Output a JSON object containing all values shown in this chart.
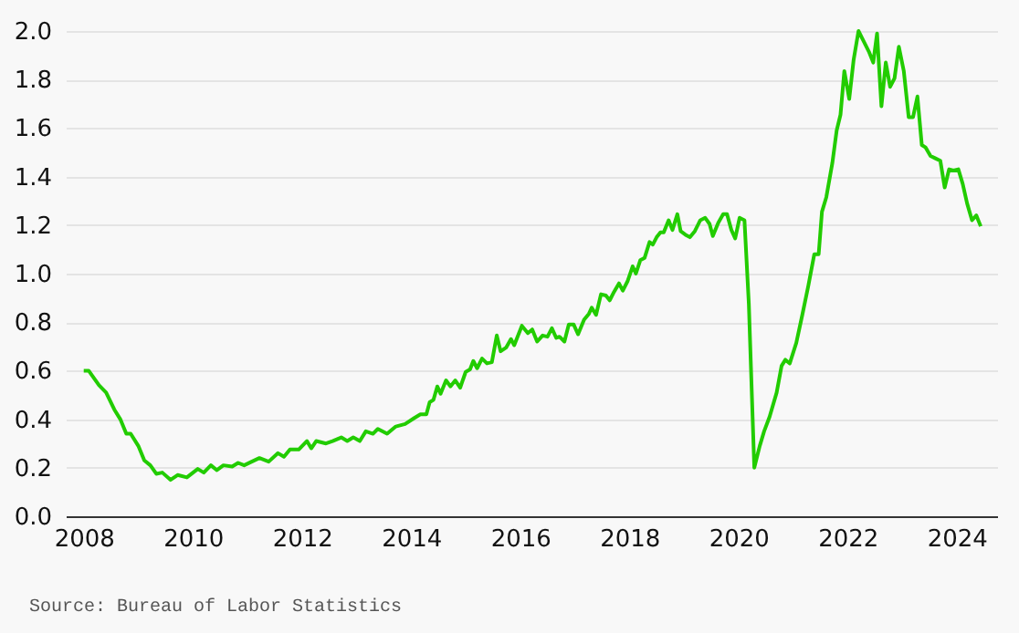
{
  "chart_data": {
    "type": "line",
    "annotations": [
      "Source: Bureau of Labor Statistics"
    ],
    "xlim": [
      2007.67,
      2024.74
    ],
    "xticks": [
      2008,
      2010,
      2012,
      2014,
      2016,
      2018,
      2020,
      2022,
      2024
    ],
    "ylim": [
      0,
      2.0
    ],
    "yticks": [
      {
        "value": 0,
        "label": "0.0"
      },
      0.2,
      0.4,
      0.6,
      0.8,
      {
        "value": 1,
        "label": "1.0"
      },
      1.2,
      1.4,
      1.6,
      1.8,
      {
        "value": 2,
        "label": "2.0"
      }
    ],
    "grid": "y",
    "marker": "none",
    "line_style": "solid",
    "series": [
      {
        "color": "#22cc00",
        "x": [
          2008.0,
          2008.09,
          2008.28,
          2008.41,
          2008.56,
          2008.67,
          2008.78,
          2008.86,
          2009.0,
          2009.11,
          2009.22,
          2009.33,
          2009.44,
          2009.59,
          2009.72,
          2009.89,
          2010.09,
          2010.2,
          2010.33,
          2010.44,
          2010.56,
          2010.72,
          2010.83,
          2010.94,
          2011.22,
          2011.39,
          2011.56,
          2011.67,
          2011.78,
          2011.94,
          2012.09,
          2012.17,
          2012.26,
          2012.44,
          2012.56,
          2012.72,
          2012.83,
          2012.94,
          2013.06,
          2013.17,
          2013.3,
          2013.39,
          2013.56,
          2013.72,
          2013.89,
          2014.06,
          2014.17,
          2014.28,
          2014.34,
          2014.41,
          2014.48,
          2014.54,
          2014.64,
          2014.72,
          2014.81,
          2014.9,
          2015.0,
          2015.08,
          2015.14,
          2015.21,
          2015.3,
          2015.39,
          2015.48,
          2015.57,
          2015.64,
          2015.74,
          2015.83,
          2015.89,
          2016.03,
          2016.14,
          2016.22,
          2016.31,
          2016.41,
          2016.5,
          2016.58,
          2016.66,
          2016.72,
          2016.81,
          2016.89,
          2016.98,
          2017.06,
          2017.17,
          2017.26,
          2017.31,
          2017.39,
          2017.48,
          2017.57,
          2017.64,
          2017.72,
          2017.81,
          2017.88,
          2017.97,
          2018.06,
          2018.12,
          2018.2,
          2018.28,
          2018.37,
          2018.43,
          2018.5,
          2018.57,
          2018.63,
          2018.72,
          2018.79,
          2018.88,
          2018.94,
          2019.03,
          2019.11,
          2019.2,
          2019.3,
          2019.39,
          2019.47,
          2019.53,
          2019.63,
          2019.72,
          2019.79,
          2019.87,
          2019.94,
          2020.02,
          2020.11,
          2020.19,
          2020.29,
          2020.39,
          2020.47,
          2020.57,
          2020.7,
          2020.79,
          2020.86,
          2020.94,
          2021.06,
          2021.17,
          2021.28,
          2021.39,
          2021.47,
          2021.53,
          2021.61,
          2021.72,
          2021.8,
          2021.87,
          2021.94,
          2022.03,
          2022.11,
          2022.2,
          2022.3,
          2022.39,
          2022.47,
          2022.54,
          2022.62,
          2022.7,
          2022.78,
          2022.86,
          2022.94,
          2023.03,
          2023.12,
          2023.2,
          2023.28,
          2023.36,
          2023.43,
          2023.52,
          2023.61,
          2023.7,
          2023.78,
          2023.86,
          2023.94,
          2024.03,
          2024.11,
          2024.19,
          2024.28,
          2024.36,
          2024.44
        ],
        "values": [
          0.6,
          0.6,
          0.54,
          0.51,
          0.44,
          0.4,
          0.34,
          0.34,
          0.29,
          0.23,
          0.21,
          0.175,
          0.18,
          0.15,
          0.17,
          0.16,
          0.195,
          0.18,
          0.21,
          0.19,
          0.21,
          0.205,
          0.22,
          0.21,
          0.24,
          0.225,
          0.26,
          0.245,
          0.275,
          0.275,
          0.31,
          0.28,
          0.31,
          0.3,
          0.31,
          0.325,
          0.31,
          0.325,
          0.31,
          0.35,
          0.34,
          0.36,
          0.34,
          0.37,
          0.38,
          0.405,
          0.42,
          0.42,
          0.47,
          0.48,
          0.535,
          0.505,
          0.56,
          0.535,
          0.56,
          0.53,
          0.595,
          0.605,
          0.64,
          0.61,
          0.65,
          0.63,
          0.635,
          0.745,
          0.68,
          0.695,
          0.73,
          0.705,
          0.785,
          0.755,
          0.77,
          0.72,
          0.745,
          0.74,
          0.775,
          0.735,
          0.74,
          0.72,
          0.79,
          0.79,
          0.75,
          0.81,
          0.835,
          0.86,
          0.83,
          0.915,
          0.91,
          0.89,
          0.925,
          0.96,
          0.93,
          0.97,
          1.03,
          1.0,
          1.055,
          1.065,
          1.13,
          1.12,
          1.15,
          1.17,
          1.17,
          1.22,
          1.18,
          1.245,
          1.175,
          1.16,
          1.15,
          1.175,
          1.22,
          1.23,
          1.205,
          1.155,
          1.21,
          1.245,
          1.245,
          1.18,
          1.145,
          1.23,
          1.22,
          0.875,
          0.2,
          0.29,
          0.35,
          0.41,
          0.51,
          0.62,
          0.645,
          0.63,
          0.715,
          0.83,
          0.95,
          1.08,
          1.08,
          1.255,
          1.315,
          1.455,
          1.59,
          1.655,
          1.835,
          1.72,
          1.88,
          2.0,
          1.955,
          1.915,
          1.87,
          1.99,
          1.69,
          1.87,
          1.77,
          1.805,
          1.935,
          1.835,
          1.645,
          1.645,
          1.73,
          1.53,
          1.52,
          1.485,
          1.475,
          1.465,
          1.355,
          1.43,
          1.425,
          1.43,
          1.37,
          1.29,
          1.22,
          1.24,
          1.195
        ]
      }
    ]
  }
}
